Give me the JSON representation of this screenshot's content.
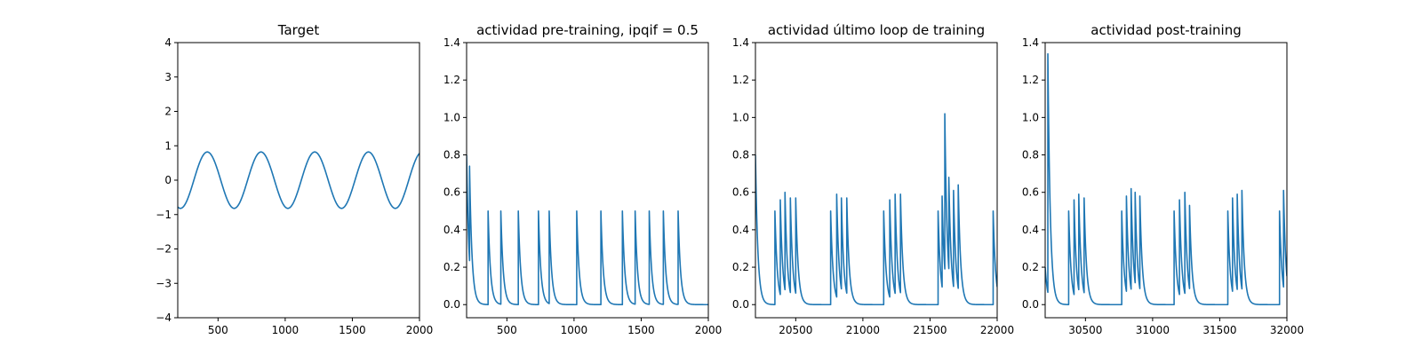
{
  "chart_data": [
    {
      "type": "line",
      "title": "Target",
      "xlim": [
        200,
        2000
      ],
      "ylim": [
        -4,
        4
      ],
      "xticks": [
        500,
        1000,
        1500,
        2000
      ],
      "yticks": [
        -4,
        -3,
        -2,
        -1,
        0,
        1,
        2,
        3,
        4
      ],
      "series": [
        {
          "color": "#1f77b4",
          "kind": "sine",
          "amplitude": 0.82,
          "period": 400,
          "peak_at": 420,
          "x_range": [
            200,
            2000
          ]
        }
      ]
    },
    {
      "type": "line",
      "title": "actividad pre-training, ipqif = 0.5",
      "xlim": [
        200,
        2000
      ],
      "ylim": [
        -0.07,
        1.4
      ],
      "xticks": [
        500,
        1000,
        1500,
        2000
      ],
      "yticks": [
        0.0,
        0.2,
        0.4,
        0.6,
        0.8,
        1.0,
        1.2,
        1.4
      ],
      "series": [
        {
          "color": "#1f77b4",
          "kind": "spike_decay",
          "x_range": [
            200,
            2000
          ],
          "initial_value": 0.8,
          "decay_tau": 18,
          "spikes": [
            {
              "x": 222,
              "height": 0.74
            },
            {
              "x": 360,
              "height": 0.5
            },
            {
              "x": 455,
              "height": 0.5
            },
            {
              "x": 585,
              "height": 0.5
            },
            {
              "x": 735,
              "height": 0.5
            },
            {
              "x": 815,
              "height": 0.5
            },
            {
              "x": 1020,
              "height": 0.5
            },
            {
              "x": 1200,
              "height": 0.5
            },
            {
              "x": 1360,
              "height": 0.5
            },
            {
              "x": 1455,
              "height": 0.5
            },
            {
              "x": 1560,
              "height": 0.5
            },
            {
              "x": 1665,
              "height": 0.5
            },
            {
              "x": 1775,
              "height": 0.5
            }
          ]
        }
      ]
    },
    {
      "type": "line",
      "title": "actividad último loop de training",
      "xlim": [
        20200,
        22000
      ],
      "ylim": [
        -0.07,
        1.4
      ],
      "xticks": [
        20500,
        21000,
        21500,
        22000
      ],
      "yticks": [
        0.0,
        0.2,
        0.4,
        0.6,
        0.8,
        1.0,
        1.2,
        1.4
      ],
      "series": [
        {
          "color": "#1f77b4",
          "kind": "spike_decay",
          "x_range": [
            20200,
            22000
          ],
          "initial_value": 0.8,
          "decay_tau": 18,
          "spikes": [
            {
              "x": 20345,
              "height": 0.5
            },
            {
              "x": 20385,
              "height": 0.56
            },
            {
              "x": 20420,
              "height": 0.6
            },
            {
              "x": 20460,
              "height": 0.57
            },
            {
              "x": 20500,
              "height": 0.57
            },
            {
              "x": 20760,
              "height": 0.5
            },
            {
              "x": 20805,
              "height": 0.59
            },
            {
              "x": 20840,
              "height": 0.57
            },
            {
              "x": 20880,
              "height": 0.57
            },
            {
              "x": 21155,
              "height": 0.5
            },
            {
              "x": 21200,
              "height": 0.56
            },
            {
              "x": 21240,
              "height": 0.59
            },
            {
              "x": 21280,
              "height": 0.59
            },
            {
              "x": 21560,
              "height": 0.5
            },
            {
              "x": 21590,
              "height": 0.58
            },
            {
              "x": 21610,
              "height": 1.02
            },
            {
              "x": 21640,
              "height": 0.68
            },
            {
              "x": 21675,
              "height": 0.61
            },
            {
              "x": 21710,
              "height": 0.64
            },
            {
              "x": 21970,
              "height": 0.5
            }
          ]
        }
      ]
    },
    {
      "type": "line",
      "title": "actividad post-training",
      "xlim": [
        30200,
        32000
      ],
      "ylim": [
        -0.07,
        1.4
      ],
      "xticks": [
        30500,
        31000,
        31500,
        32000
      ],
      "yticks": [
        0.0,
        0.2,
        0.4,
        0.6,
        0.8,
        1.0,
        1.2,
        1.4
      ],
      "series": [
        {
          "color": "#1f77b4",
          "kind": "spike_decay",
          "x_range": [
            30200,
            32000
          ],
          "initial_value": 0.2,
          "decay_tau": 18,
          "spikes": [
            {
              "x": 30220,
              "height": 1.34
            },
            {
              "x": 30375,
              "height": 0.5
            },
            {
              "x": 30415,
              "height": 0.56
            },
            {
              "x": 30450,
              "height": 0.59
            },
            {
              "x": 30490,
              "height": 0.57
            },
            {
              "x": 30770,
              "height": 0.5
            },
            {
              "x": 30805,
              "height": 0.58
            },
            {
              "x": 30840,
              "height": 0.62
            },
            {
              "x": 30870,
              "height": 0.6
            },
            {
              "x": 30905,
              "height": 0.58
            },
            {
              "x": 31160,
              "height": 0.5
            },
            {
              "x": 31200,
              "height": 0.56
            },
            {
              "x": 31240,
              "height": 0.6
            },
            {
              "x": 31275,
              "height": 0.53
            },
            {
              "x": 31560,
              "height": 0.5
            },
            {
              "x": 31595,
              "height": 0.57
            },
            {
              "x": 31630,
              "height": 0.59
            },
            {
              "x": 31665,
              "height": 0.61
            },
            {
              "x": 31945,
              "height": 0.5
            },
            {
              "x": 31975,
              "height": 0.61
            }
          ]
        }
      ]
    }
  ]
}
